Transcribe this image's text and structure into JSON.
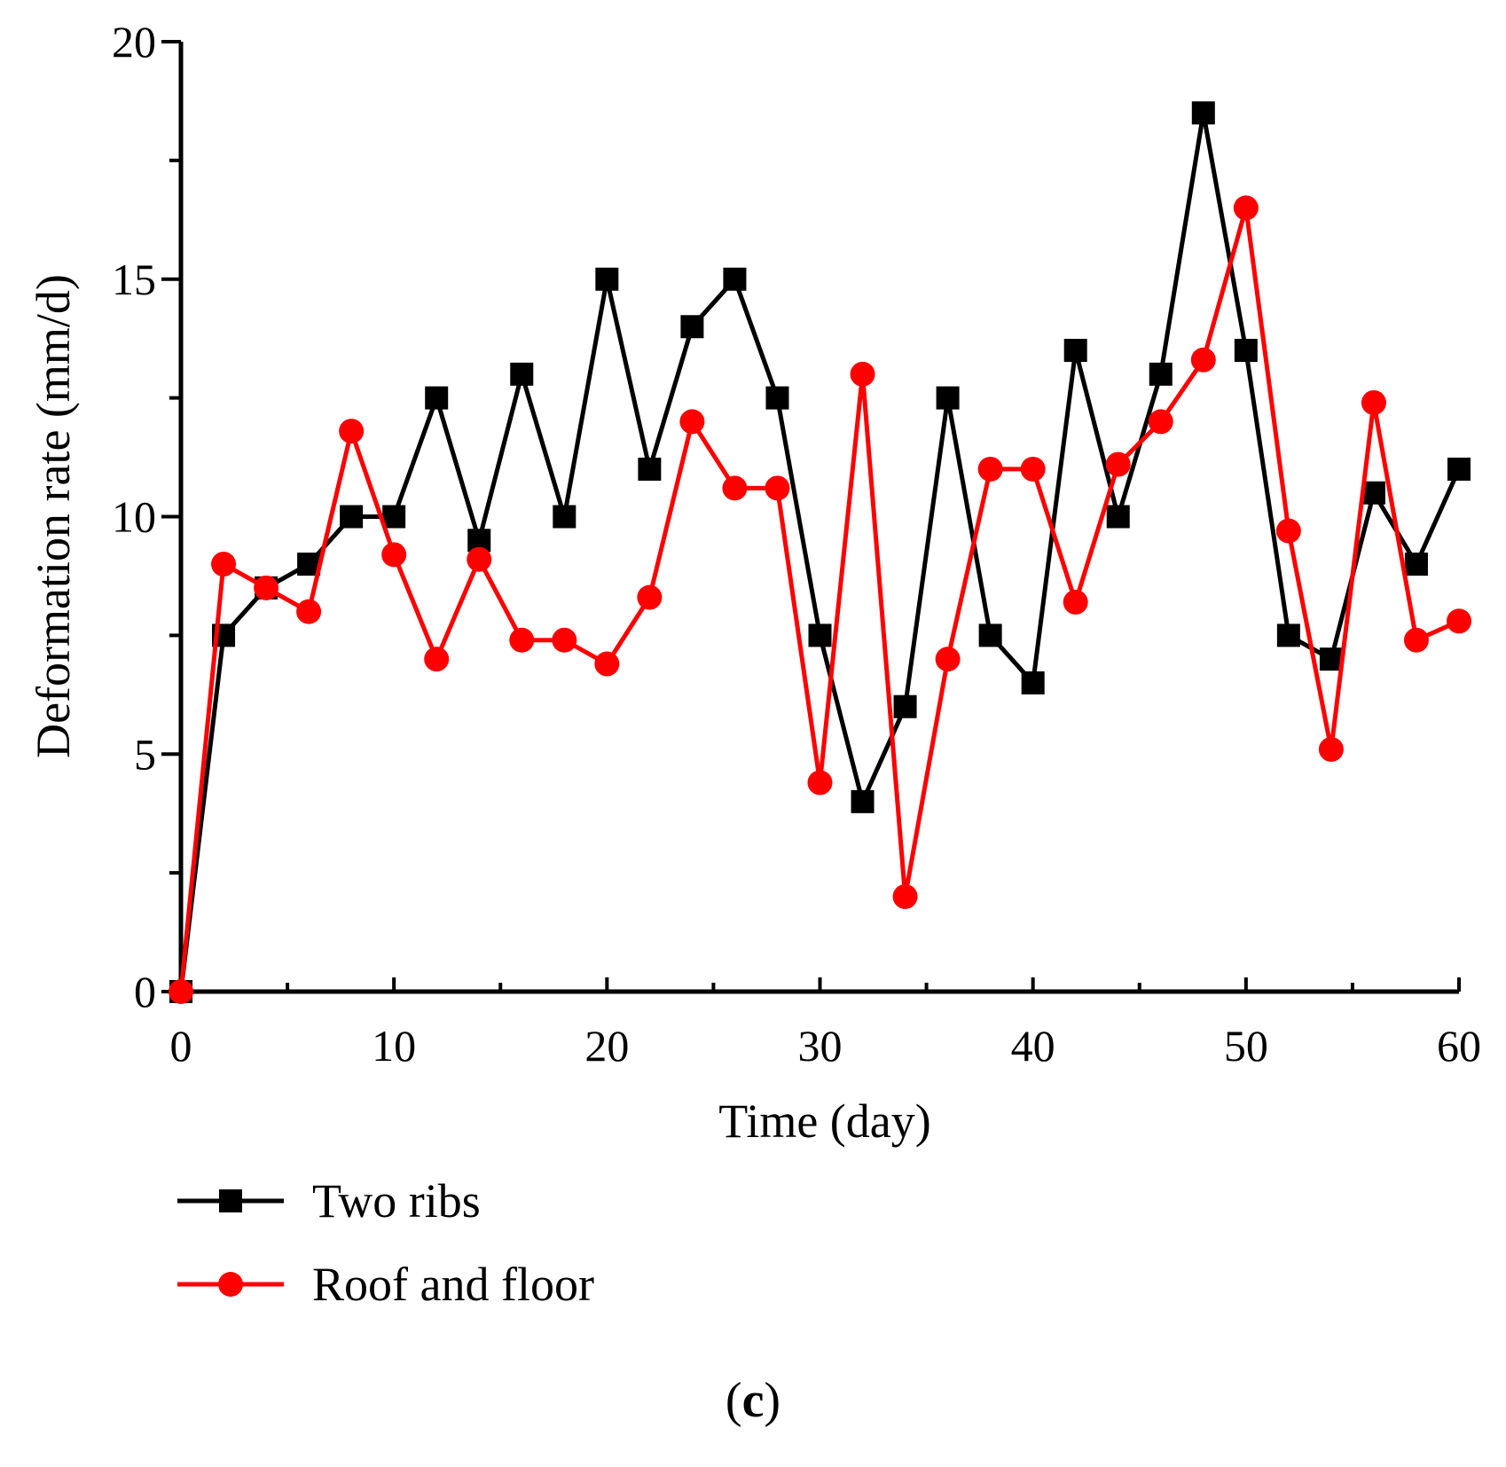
{
  "chart_data": {
    "type": "line",
    "title": "",
    "xlabel": "Time (day)",
    "ylabel": "Deformation rate (mm/d)",
    "xlim": [
      0,
      60
    ],
    "ylim": [
      0,
      20
    ],
    "xticks": [
      "0",
      "10",
      "20",
      "30",
      "40",
      "50",
      "60"
    ],
    "yticks": [
      "0",
      "5",
      "10",
      "15",
      "20"
    ],
    "grid": false,
    "legend_position": "below plot, left",
    "x": [
      0,
      2,
      4,
      6,
      8,
      10,
      12,
      14,
      16,
      18,
      20,
      22,
      24,
      26,
      28,
      30,
      32,
      34,
      36,
      38,
      40,
      42,
      44,
      46,
      48,
      50,
      52,
      54,
      56,
      58,
      60
    ],
    "series": [
      {
        "name": "Two ribs",
        "color": "#000000",
        "marker": "square",
        "values": [
          0,
          7.5,
          8.5,
          9,
          10,
          10,
          12.5,
          9.5,
          13,
          10,
          15,
          11,
          14,
          15,
          12.5,
          7.5,
          4,
          6,
          12.5,
          7.5,
          6.5,
          13.5,
          10,
          13,
          18.5,
          13.5,
          7.5,
          7,
          10.5,
          9,
          11
        ]
      },
      {
        "name": "Roof and floor",
        "color": "#ff0000",
        "marker": "circle",
        "values": [
          0,
          9,
          8.5,
          8,
          11.8,
          9.2,
          7,
          9.1,
          7.4,
          7.4,
          6.9,
          8.3,
          12,
          10.6,
          10.6,
          4.4,
          13,
          2,
          7,
          11,
          11,
          8.2,
          11.1,
          12,
          13.3,
          16.5,
          9.7,
          5.1,
          12.4,
          7.4,
          7.8
        ]
      }
    ]
  },
  "panel_label": {
    "open": "(",
    "letter": "c",
    "close": ")"
  }
}
